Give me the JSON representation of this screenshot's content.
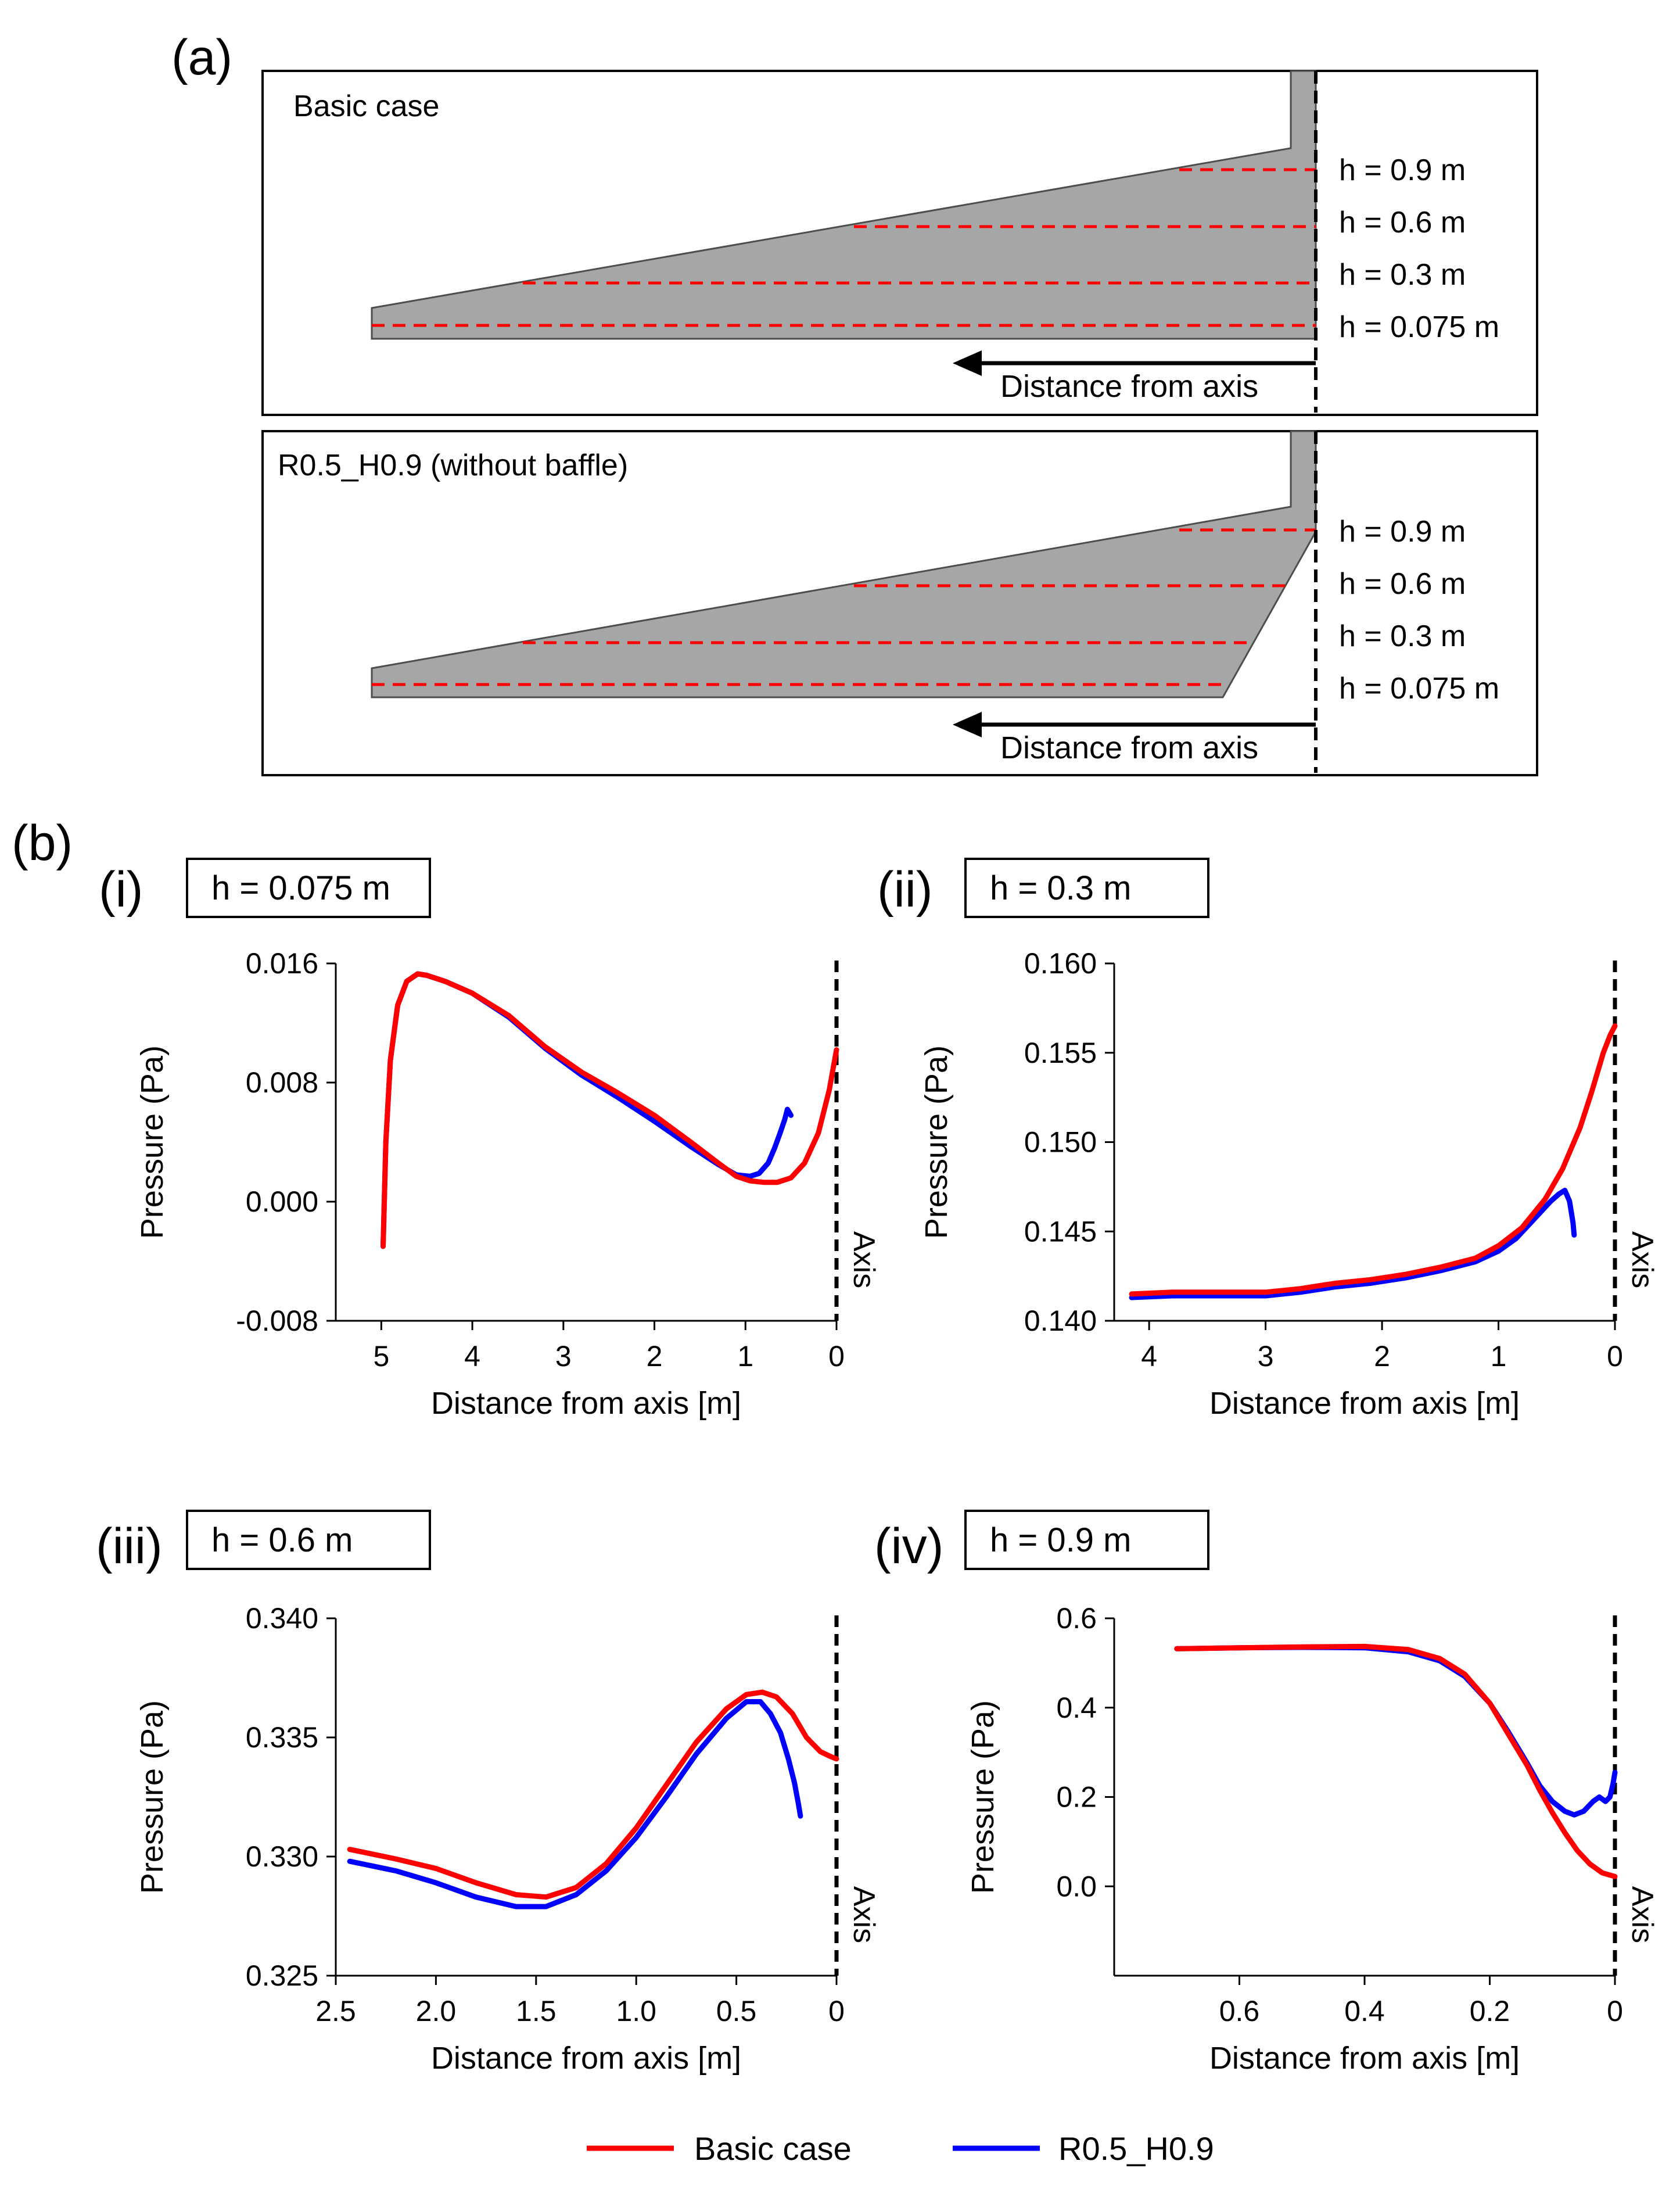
{
  "panel_a": {
    "label": "(a)",
    "diagrams": [
      {
        "title": "Basic case",
        "levels": [
          "h = 0.9 m",
          "h = 0.6 m",
          "h = 0.3 m",
          "h = 0.075 m"
        ],
        "arrow_label": "Distance from axis"
      },
      {
        "title": "R0.5_H0.9 (without baffle)",
        "levels": [
          "h = 0.9 m",
          "h = 0.6 m",
          "h = 0.3 m",
          "h = 0.075 m"
        ],
        "arrow_label": "Distance from axis"
      }
    ]
  },
  "panel_b": {
    "label": "(b)"
  },
  "colors": {
    "basic": "#ff0000",
    "r05": "#0000ff",
    "fill": "#a6a6a6",
    "dash": "#ff0000"
  },
  "legend": [
    {
      "label": "Basic case",
      "color": "#ff0000"
    },
    {
      "label": "R0.5_H0.9",
      "color": "#0000ff"
    }
  ],
  "chart_data": [
    {
      "type": "line",
      "panel": "(i)",
      "title": "h = 0.075 m",
      "xlabel": "Distance from axis [m]",
      "ylabel": "Pressure (Pa)",
      "axis_marker": "Axis",
      "xlim": [
        5.5,
        0
      ],
      "ylim": [
        -0.008,
        0.016
      ],
      "xticks": [
        5,
        4,
        3,
        2,
        1,
        0
      ],
      "xtick_labels": [
        "5",
        "4",
        "3",
        "2",
        "1",
        "0"
      ],
      "yticks": [
        -0.008,
        0.0,
        0.008,
        0.016
      ],
      "ytick_labels": [
        "-0.008",
        "0.000",
        "0.008",
        "0.016"
      ],
      "series": [
        {
          "name": "R0.5_H0.9",
          "color": "#0000ff",
          "x": [
            4.98,
            4.95,
            4.9,
            4.82,
            4.72,
            4.6,
            4.5,
            4.3,
            4.0,
            3.6,
            3.2,
            2.8,
            2.4,
            2.0,
            1.6,
            1.3,
            1.1,
            0.95,
            0.85,
            0.75,
            0.68,
            0.62,
            0.57,
            0.54,
            0.5
          ],
          "y": [
            -0.003,
            0.004,
            0.0095,
            0.0132,
            0.0148,
            0.0153,
            0.0152,
            0.0148,
            0.014,
            0.0124,
            0.0103,
            0.0085,
            0.007,
            0.0054,
            0.0037,
            0.0025,
            0.0018,
            0.0017,
            0.0019,
            0.0026,
            0.0036,
            0.0046,
            0.0055,
            0.0062,
            0.0058
          ]
        },
        {
          "name": "Basic case",
          "color": "#ff0000",
          "x": [
            4.98,
            4.95,
            4.9,
            4.82,
            4.72,
            4.6,
            4.5,
            4.3,
            4.0,
            3.6,
            3.2,
            2.8,
            2.4,
            2.0,
            1.6,
            1.3,
            1.1,
            0.95,
            0.8,
            0.65,
            0.5,
            0.35,
            0.2,
            0.08,
            0.0
          ],
          "y": [
            -0.003,
            0.004,
            0.0095,
            0.0132,
            0.0148,
            0.0153,
            0.0152,
            0.0148,
            0.014,
            0.0125,
            0.0104,
            0.0087,
            0.0073,
            0.0058,
            0.004,
            0.0026,
            0.0017,
            0.0014,
            0.0013,
            0.0013,
            0.0016,
            0.0026,
            0.0046,
            0.0075,
            0.0102
          ]
        }
      ]
    },
    {
      "type": "line",
      "panel": "(ii)",
      "title": "h = 0.3 m",
      "xlabel": "Distance from axis [m]",
      "ylabel": "Pressure (Pa)",
      "axis_marker": "Axis",
      "xlim": [
        4.3,
        0
      ],
      "ylim": [
        0.14,
        0.16
      ],
      "xticks": [
        4,
        3,
        2,
        1,
        0
      ],
      "xtick_labels": [
        "4",
        "3",
        "2",
        "1",
        "0"
      ],
      "yticks": [
        0.14,
        0.145,
        0.15,
        0.155,
        0.16
      ],
      "ytick_labels": [
        "0.140",
        "0.145",
        "0.150",
        "0.155",
        "0.160"
      ],
      "series": [
        {
          "name": "R0.5_H0.9",
          "color": "#0000ff",
          "x": [
            4.15,
            3.8,
            3.4,
            3.0,
            2.7,
            2.4,
            2.1,
            1.8,
            1.5,
            1.2,
            1.0,
            0.85,
            0.75,
            0.65,
            0.55,
            0.48,
            0.43,
            0.39,
            0.36,
            0.35
          ],
          "y": [
            0.1413,
            0.1414,
            0.1414,
            0.1414,
            0.1416,
            0.1419,
            0.1421,
            0.1424,
            0.1428,
            0.1433,
            0.1439,
            0.1446,
            0.1453,
            0.146,
            0.1467,
            0.1471,
            0.1473,
            0.1467,
            0.1455,
            0.1448
          ]
        },
        {
          "name": "Basic case",
          "color": "#ff0000",
          "x": [
            4.15,
            3.8,
            3.4,
            3.0,
            2.7,
            2.4,
            2.1,
            1.8,
            1.5,
            1.2,
            1.0,
            0.8,
            0.6,
            0.45,
            0.3,
            0.2,
            0.1,
            0.04,
            0.0
          ],
          "y": [
            0.1415,
            0.1416,
            0.1416,
            0.1416,
            0.1418,
            0.1421,
            0.1423,
            0.1426,
            0.143,
            0.1435,
            0.1442,
            0.1452,
            0.1468,
            0.1485,
            0.1508,
            0.1528,
            0.155,
            0.156,
            0.1565
          ]
        }
      ]
    },
    {
      "type": "line",
      "panel": "(iii)",
      "title": "h = 0.6 m",
      "xlabel": "Distance from axis [m]",
      "ylabel": "Pressure (Pa)",
      "axis_marker": "Axis",
      "xlim": [
        2.5,
        0
      ],
      "ylim": [
        0.325,
        0.34
      ],
      "xticks": [
        2.5,
        2.0,
        1.5,
        1.0,
        0.5,
        0
      ],
      "xtick_labels": [
        "2.5",
        "2.0",
        "1.5",
        "1.0",
        "0.5",
        "0"
      ],
      "yticks": [
        0.325,
        0.33,
        0.335,
        0.34
      ],
      "ytick_labels": [
        "0.325",
        "0.330",
        "0.335",
        "0.340"
      ],
      "series": [
        {
          "name": "R0.5_H0.9",
          "color": "#0000ff",
          "x": [
            2.43,
            2.2,
            2.0,
            1.8,
            1.6,
            1.45,
            1.3,
            1.15,
            1.0,
            0.85,
            0.7,
            0.55,
            0.45,
            0.38,
            0.33,
            0.28,
            0.24,
            0.21,
            0.19,
            0.18
          ],
          "y": [
            0.3298,
            0.3294,
            0.3289,
            0.3283,
            0.3279,
            0.3279,
            0.3284,
            0.3294,
            0.3308,
            0.3325,
            0.3343,
            0.3358,
            0.3365,
            0.3365,
            0.336,
            0.3352,
            0.3341,
            0.3331,
            0.3322,
            0.3317
          ]
        },
        {
          "name": "Basic case",
          "color": "#ff0000",
          "x": [
            2.43,
            2.2,
            2.0,
            1.8,
            1.6,
            1.45,
            1.3,
            1.15,
            1.0,
            0.85,
            0.7,
            0.55,
            0.45,
            0.37,
            0.3,
            0.22,
            0.15,
            0.08,
            0.03,
            0.0
          ],
          "y": [
            0.3303,
            0.3299,
            0.3295,
            0.3289,
            0.3284,
            0.3283,
            0.3287,
            0.3297,
            0.3312,
            0.333,
            0.3348,
            0.3362,
            0.3368,
            0.3369,
            0.3367,
            0.336,
            0.335,
            0.3344,
            0.3342,
            0.3341
          ]
        }
      ]
    },
    {
      "type": "line",
      "panel": "(iv)",
      "title": "h = 0.9 m",
      "xlabel": "Distance from axis [m]",
      "ylabel": "Pressure (Pa)",
      "axis_marker": "Axis",
      "xlim": [
        0.8,
        0
      ],
      "ylim": [
        -0.2,
        0.6
      ],
      "xticks": [
        0.6,
        0.4,
        0.2,
        0
      ],
      "xtick_labels": [
        "0.6",
        "0.4",
        "0.2",
        "0"
      ],
      "yticks": [
        0.0,
        0.2,
        0.4,
        0.6
      ],
      "ytick_labels": [
        "0.0",
        "0.2",
        "0.4",
        "0.6"
      ],
      "series": [
        {
          "name": "R0.5_H0.9",
          "color": "#0000ff",
          "x": [
            0.7,
            0.6,
            0.5,
            0.4,
            0.33,
            0.28,
            0.24,
            0.2,
            0.17,
            0.14,
            0.12,
            0.1,
            0.08,
            0.065,
            0.05,
            0.035,
            0.025,
            0.015,
            0.008,
            0.003,
            0.0
          ],
          "y": [
            0.532,
            0.534,
            0.535,
            0.534,
            0.525,
            0.505,
            0.47,
            0.41,
            0.345,
            0.275,
            0.225,
            0.19,
            0.168,
            0.16,
            0.168,
            0.19,
            0.2,
            0.19,
            0.2,
            0.23,
            0.255
          ]
        },
        {
          "name": "Basic case",
          "color": "#ff0000",
          "x": [
            0.7,
            0.6,
            0.5,
            0.4,
            0.33,
            0.28,
            0.24,
            0.2,
            0.17,
            0.14,
            0.12,
            0.1,
            0.08,
            0.06,
            0.04,
            0.02,
            0.0
          ],
          "y": [
            0.532,
            0.534,
            0.536,
            0.537,
            0.53,
            0.51,
            0.475,
            0.41,
            0.34,
            0.27,
            0.215,
            0.165,
            0.12,
            0.08,
            0.05,
            0.03,
            0.022
          ]
        }
      ]
    }
  ]
}
